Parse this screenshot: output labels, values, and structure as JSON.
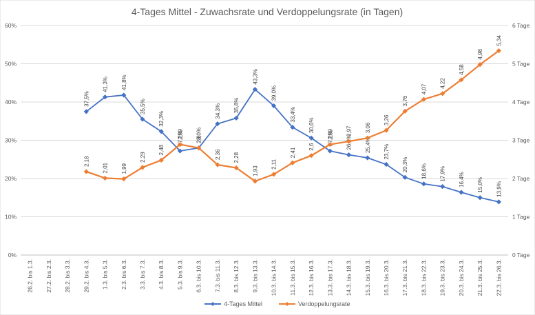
{
  "chart_data": {
    "type": "line",
    "title": "4-Tages Mittel - Zuwachsrate und Verdoppelungsrate (in Tagen)",
    "categories": [
      "26.2. bis 1.3.",
      "27.2. bis 2.3.",
      "28.2. bis 3.3.",
      "29.2. bis 4.3.",
      "1.3. bis 5.3.",
      "2.3. bis 6.3.",
      "3.3. bis 7.3.",
      "4.3. bis 8.3.",
      "5.3. bis 9.3.",
      "6.3. bis 10.3.",
      "7.3. bis 11.3.",
      "8.3. bis 12.3.",
      "9.3. bis 13.3.",
      "10.3. bis 14.3.",
      "11.3. bis 15.3.",
      "12.3. bis 16.3.",
      "13.3. bis 17.3.",
      "14.3. bis 18.3.",
      "15.3. bis 19.3.",
      "16.3. bis 20.3.",
      "17.3. bis 21.3.",
      "18.3. bis 22.3.",
      "19.3. bis 23.3.",
      "20.3. bis 24.3.",
      "21.3. bis 25.3.",
      "22.3. bis 26.3."
    ],
    "y_left": {
      "ticks": [
        "0%",
        "10%",
        "20%",
        "30%",
        "40%",
        "50%",
        "60%"
      ],
      "min": 0,
      "max": 60
    },
    "y_right": {
      "ticks": [
        "0 Tage",
        "1 Tage",
        "2 Tage",
        "3 Tage",
        "4 Tage",
        "5 Tage",
        "6 Tage"
      ],
      "min": 0,
      "max": 6
    },
    "grid": true,
    "legend_position": "bottom",
    "series": [
      {
        "name": "4-Tages Mittel",
        "axis": "left",
        "color": "#4472c4",
        "values": [
          null,
          null,
          null,
          37.5,
          41.3,
          41.8,
          35.5,
          32.3,
          27.2,
          28.0,
          34.3,
          35.8,
          43.3,
          39.0,
          33.4,
          30.6,
          27.2,
          26.2,
          25.4,
          23.7,
          20.3,
          18.6,
          17.9,
          16.4,
          15.0,
          13.9
        ],
        "labels": [
          null,
          null,
          null,
          "37,5%",
          "41,3%",
          "41,8%",
          "35,5%",
          "32,3%",
          "27,2%",
          "28,0%",
          "34,3%",
          "35,8%",
          "43,3%",
          "39,0%",
          "33,4%",
          "30,6%",
          "27,2%",
          "26,2%",
          "25,4%",
          "23,7%",
          "20,3%",
          "18,6%",
          "17,9%",
          "16,4%",
          "15,0%",
          "13,9%"
        ]
      },
      {
        "name": "Verdoppelungsrate",
        "axis": "right",
        "color": "#ed7d31",
        "values": [
          null,
          null,
          null,
          2.18,
          2.01,
          1.99,
          2.29,
          2.48,
          2.89,
          2.8,
          2.36,
          2.28,
          1.93,
          2.11,
          2.41,
          2.6,
          2.89,
          2.97,
          3.06,
          3.26,
          3.76,
          4.07,
          4.22,
          4.58,
          4.98,
          5.34
        ],
        "labels": [
          null,
          null,
          null,
          "2,18",
          "2,01",
          "1,99",
          "2,29",
          "2,48",
          "2,89",
          "2,8",
          "2,36",
          "2,28",
          "1,93",
          "2,11",
          "2,41",
          "2,6",
          "2,89",
          "2,97",
          "3,06",
          "3,26",
          "3,76",
          "4,07",
          "4,22",
          "4,58",
          "4,98",
          "5,34"
        ]
      }
    ]
  }
}
